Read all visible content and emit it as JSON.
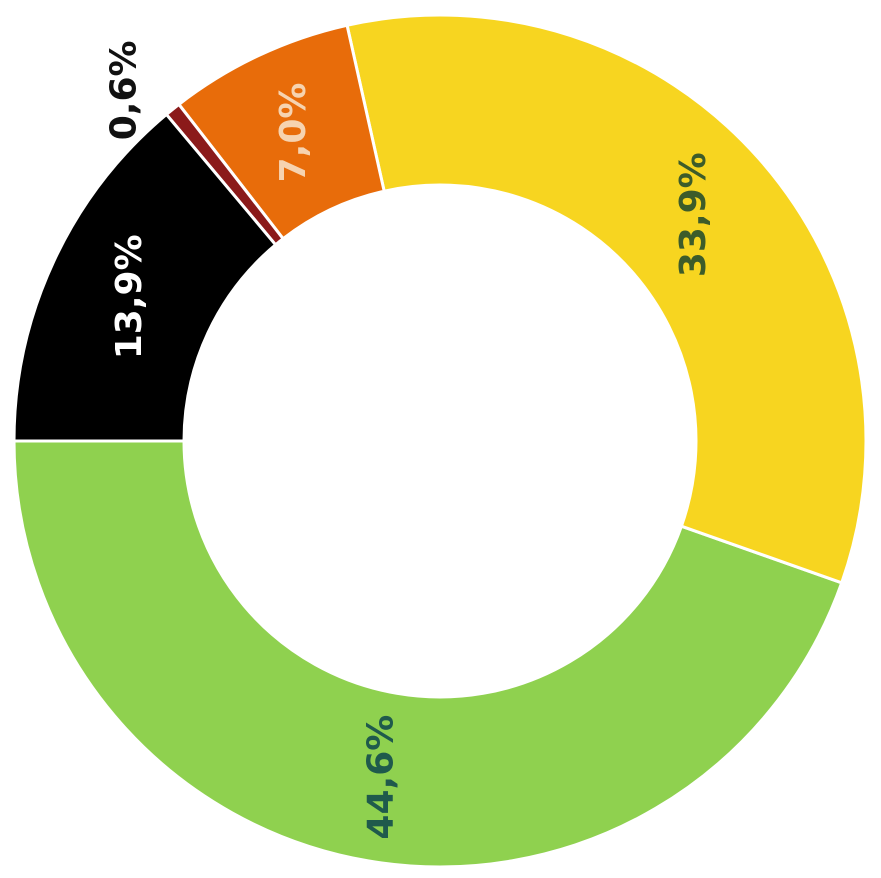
{
  "chart_data": {
    "type": "donut",
    "categories": [
      null,
      null,
      null,
      null,
      null
    ],
    "values": [
      44.6,
      33.9,
      7.0,
      0.6,
      13.9
    ],
    "value_labels": [
      "44,6%",
      "33,9%",
      "7,0%",
      "0,6%",
      "13,9%"
    ],
    "colors": [
      "#8fd14f",
      "#f7d520",
      "#e86c0a",
      "#8b1a1a",
      "#000000"
    ],
    "label_colors": [
      "#1f5a4c",
      "#3d5c2a",
      "#f6d3b0",
      "#111111",
      "#ffffff"
    ]
  }
}
